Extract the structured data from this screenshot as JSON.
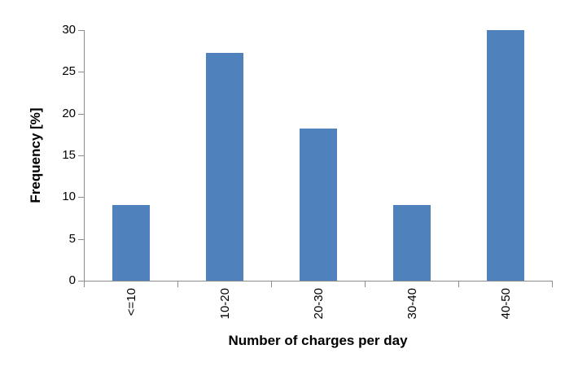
{
  "chart_data": {
    "type": "bar",
    "title": "",
    "categories": [
      "<=10",
      "10-20",
      "20-30",
      "30-40",
      "40-50"
    ],
    "values": [
      9.1,
      27.3,
      18.2,
      9.1,
      30
    ],
    "xlabel": "Number of charges per day",
    "ylabel": "Frequency [%]",
    "ylim": [
      0,
      30
    ],
    "yticks": [
      0,
      5,
      10,
      15,
      20,
      25,
      30
    ],
    "grid": false,
    "legend": null,
    "bar_color": "#4F81BD",
    "axis_color": "#8C8C8C",
    "text_color": "#000000"
  }
}
